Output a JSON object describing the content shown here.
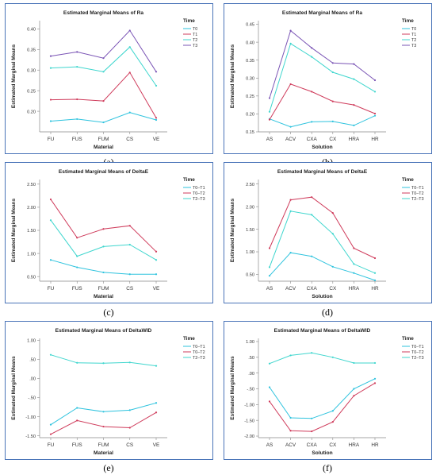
{
  "chart_data": [
    {
      "id": "a",
      "type": "line",
      "title": "Estimated Marginal Means of Ra",
      "xlabel": "Material",
      "ylabel": "Estimated Marginal Means",
      "legend_title": "Time",
      "legend_position": "right",
      "categories": [
        "FU",
        "FUS",
        "FUM",
        "CS",
        "VE"
      ],
      "ylim": [
        0.15,
        0.42
      ],
      "yticks": [
        0.2,
        0.25,
        0.3,
        0.35,
        0.4
      ],
      "ytick_labels": [
        "0.20",
        "0.25",
        "0.30",
        "0.35",
        "0.40"
      ],
      "series": [
        {
          "name": "T0",
          "color": "#2ec3de",
          "values": [
            0.176,
            0.181,
            0.173,
            0.197,
            0.179
          ]
        },
        {
          "name": "T1",
          "color": "#cf3b5b",
          "values": [
            0.228,
            0.229,
            0.225,
            0.294,
            0.184
          ]
        },
        {
          "name": "T2",
          "color": "#3fd6ce",
          "values": [
            0.305,
            0.308,
            0.296,
            0.356,
            0.262
          ]
        },
        {
          "name": "T3",
          "color": "#7a54b5",
          "values": [
            0.334,
            0.344,
            0.329,
            0.396,
            0.296
          ]
        }
      ],
      "caption": "(a)"
    },
    {
      "id": "b",
      "type": "line",
      "title": "Estimated Marginal Means of Ra",
      "xlabel": "Solution",
      "ylabel": "Estimated Marginal Means",
      "legend_title": "Time",
      "legend_position": "right",
      "categories": [
        "AS",
        "ACV",
        "CXA",
        "CX",
        "HRA",
        "HR"
      ],
      "ylim": [
        0.15,
        0.46
      ],
      "yticks": [
        0.15,
        0.2,
        0.25,
        0.3,
        0.35,
        0.4,
        0.45
      ],
      "ytick_labels": [
        "0.15",
        "0.20",
        "0.25",
        "0.30",
        "0.35",
        "0.40",
        "0.45"
      ],
      "series": [
        {
          "name": "T0",
          "color": "#2ec3de",
          "values": [
            0.186,
            0.164,
            0.178,
            0.179,
            0.168,
            0.195
          ]
        },
        {
          "name": "T1",
          "color": "#cf3b5b",
          "values": [
            0.184,
            0.283,
            0.262,
            0.235,
            0.225,
            0.201
          ]
        },
        {
          "name": "T2",
          "color": "#3fd6ce",
          "values": [
            0.206,
            0.396,
            0.359,
            0.316,
            0.297,
            0.262
          ]
        },
        {
          "name": "T3",
          "color": "#7a54b5",
          "values": [
            0.244,
            0.432,
            0.384,
            0.342,
            0.339,
            0.294
          ]
        }
      ],
      "caption": "(b)"
    },
    {
      "id": "c",
      "type": "line",
      "title": "Estimated Marginal Means of DeltaE",
      "xlabel": "Material",
      "ylabel": "Estimated Marginal Means",
      "legend_title": "Time",
      "legend_position": "right",
      "categories": [
        "FU",
        "FUS",
        "FUM",
        "CS",
        "VE"
      ],
      "ylim": [
        0.4,
        2.6
      ],
      "yticks": [
        0.5,
        1.0,
        1.5,
        2.0,
        2.5
      ],
      "ytick_labels": [
        "0.50",
        "1.00",
        "1.50",
        "2.00",
        "2.50"
      ],
      "series": [
        {
          "name": "T0–T1",
          "color": "#2ec3de",
          "values": [
            0.86,
            0.7,
            0.59,
            0.55,
            0.55
          ]
        },
        {
          "name": "T0–T2",
          "color": "#cf3b5b",
          "values": [
            2.17,
            1.34,
            1.53,
            1.6,
            1.04
          ]
        },
        {
          "name": "T2–T3",
          "color": "#3fd6ce",
          "values": [
            1.72,
            0.94,
            1.15,
            1.19,
            0.86
          ]
        }
      ],
      "caption": "(c)"
    },
    {
      "id": "d",
      "type": "line",
      "title": "Estimated Marginal Means of DeltaE",
      "xlabel": "Solution",
      "ylabel": "Estimated Marginal Means",
      "legend_title": "Time",
      "legend_position": "right",
      "categories": [
        "AS",
        "ACV",
        "CXA",
        "CX",
        "HRA",
        "HR"
      ],
      "ylim": [
        0.35,
        2.6
      ],
      "yticks": [
        0.5,
        1.0,
        1.5,
        2.0,
        2.5
      ],
      "ytick_labels": [
        "0.50",
        "1.00",
        "1.50",
        "2.00",
        "2.50"
      ],
      "series": [
        {
          "name": "T0–T1",
          "color": "#2ec3de",
          "values": [
            0.47,
            0.98,
            0.9,
            0.67,
            0.53,
            0.37
          ]
        },
        {
          "name": "T0–T2",
          "color": "#cf3b5b",
          "values": [
            1.08,
            2.15,
            2.21,
            1.86,
            1.08,
            0.86
          ]
        },
        {
          "name": "T2–T3",
          "color": "#3fd6ce",
          "values": [
            0.66,
            1.9,
            1.82,
            1.4,
            0.73,
            0.53
          ]
        }
      ],
      "caption": "(d)"
    },
    {
      "id": "e",
      "type": "line",
      "title": "Estimated Marginal Means of DeltaWID",
      "xlabel": "Material",
      "ylabel": "Estimated Marginal Means",
      "legend_title": "Time",
      "legend_position": "right",
      "categories": [
        "FU",
        "FUS",
        "FUM",
        "CS",
        "VE"
      ],
      "ylim": [
        -1.55,
        1.05
      ],
      "yticks": [
        -1.5,
        -1.0,
        -0.5,
        0.0,
        0.5,
        1.0
      ],
      "ytick_labels": [
        "-1.50",
        "-1.00",
        "-.50",
        ".00",
        ".50",
        "1.00"
      ],
      "series": [
        {
          "name": "T0–T1",
          "color": "#2ec3de",
          "values": [
            -1.21,
            -0.77,
            -0.87,
            -0.83,
            -0.64
          ]
        },
        {
          "name": "T0–T2",
          "color": "#cf3b5b",
          "values": [
            -1.46,
            -1.1,
            -1.26,
            -1.29,
            -0.89
          ]
        },
        {
          "name": "T2–T3",
          "color": "#3fd6ce",
          "values": [
            0.62,
            0.41,
            0.4,
            0.42,
            0.33
          ]
        }
      ],
      "caption": "(e)"
    },
    {
      "id": "f",
      "type": "line",
      "title": "Estimated Marginal Means of DeltaWID",
      "xlabel": "Solution",
      "ylabel": "Estimated Marginal Means",
      "legend_title": "Time",
      "legend_position": "right",
      "categories": [
        "AS",
        "ACV",
        "CXA",
        "CX",
        "HRA",
        "HR"
      ],
      "ylim": [
        -2.05,
        1.1
      ],
      "yticks": [
        -2.0,
        -1.5,
        -1.0,
        -0.5,
        0.0,
        0.5,
        1.0
      ],
      "ytick_labels": [
        "-2.00",
        "-1.50",
        "-1.00",
        "-.50",
        ".00",
        ".50",
        "1.00"
      ],
      "series": [
        {
          "name": "T0–T1",
          "color": "#2ec3de",
          "values": [
            -0.45,
            -1.42,
            -1.44,
            -1.2,
            -0.5,
            -0.18
          ]
        },
        {
          "name": "T0–T2",
          "color": "#cf3b5b",
          "values": [
            -0.9,
            -1.83,
            -1.85,
            -1.55,
            -0.72,
            -0.32
          ]
        },
        {
          "name": "T2–T3",
          "color": "#3fd6ce",
          "values": [
            0.3,
            0.56,
            0.64,
            0.5,
            0.32,
            0.32
          ]
        }
      ],
      "caption": "(f)"
    }
  ]
}
